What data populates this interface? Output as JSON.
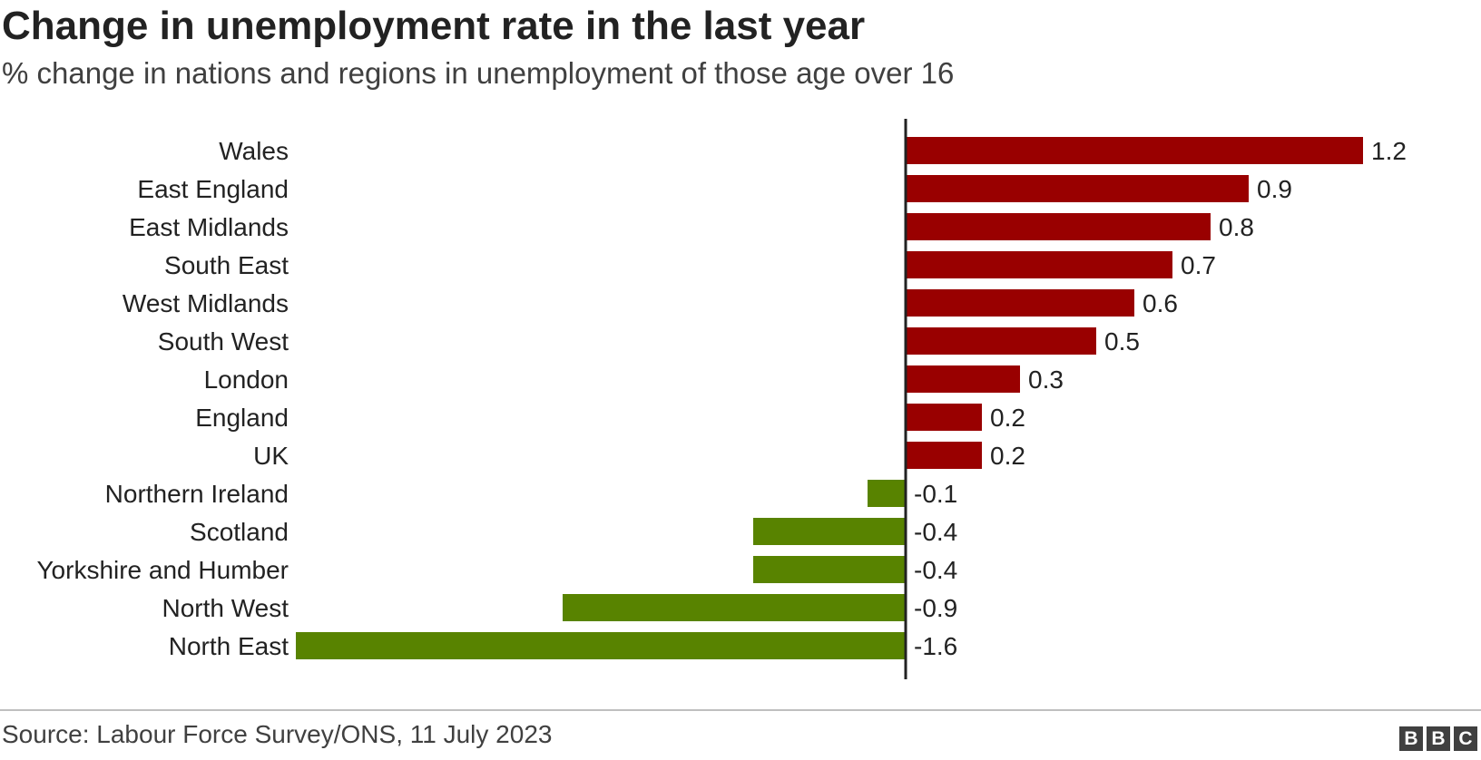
{
  "chart_data": {
    "type": "bar",
    "orientation": "horizontal",
    "title": "Change in unemployment rate in the last year",
    "subtitle": "% change in nations and regions in unemployment of those age over 16",
    "categories": [
      "Wales",
      "East England",
      "East Midlands",
      "South East",
      "West Midlands",
      "South West",
      "London",
      "England",
      "UK",
      "Northern Ireland",
      "Scotland",
      "Yorkshire and Humber",
      "North West",
      "North East"
    ],
    "values": [
      1.2,
      0.9,
      0.8,
      0.7,
      0.6,
      0.5,
      0.3,
      0.2,
      0.2,
      -0.1,
      -0.4,
      -0.4,
      -0.9,
      -1.6
    ],
    "value_labels": [
      "1.2",
      "0.9",
      "0.8",
      "0.7",
      "0.6",
      "0.5",
      "0.3",
      "0.2",
      "0.2",
      "-0.1",
      "-0.4",
      "-0.4",
      "-0.9",
      "-1.6"
    ],
    "xlim": [
      -1.6,
      1.2
    ],
    "positive_color": "#990000",
    "negative_color": "#588300",
    "grid": false,
    "legend": "none"
  },
  "footer": {
    "source": "Source: Labour Force Survey/ONS, 11 July 2023",
    "logo": [
      "B",
      "B",
      "C"
    ]
  }
}
